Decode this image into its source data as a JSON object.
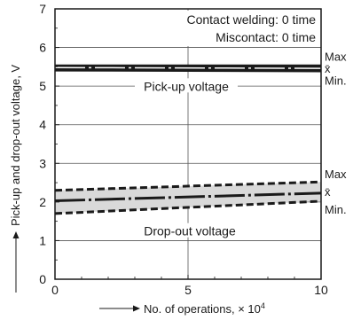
{
  "chart_data": {
    "type": "line",
    "xlabel": "No. of operations, × 10",
    "xlabel_sup": "4",
    "ylabel": "Pick-up and drop-out voltage, V",
    "xlim": [
      0,
      10
    ],
    "ylim": [
      0,
      7
    ],
    "xticks": [
      0,
      5,
      10
    ],
    "yticks": [
      0,
      1,
      2,
      3,
      4,
      5,
      6,
      7
    ],
    "grid": true,
    "annotations": [
      "Contact welding: 0 time",
      "Miscontact: 0 time"
    ],
    "bands": [
      {
        "label": "Pick-up voltage",
        "x": [
          0,
          10
        ],
        "max": [
          5.56,
          5.56
        ],
        "mean": [
          5.48,
          5.46
        ],
        "min": [
          5.38,
          5.36
        ]
      },
      {
        "label": "Drop-out voltage",
        "x": [
          0,
          10
        ],
        "max": [
          2.3,
          2.52
        ],
        "mean": [
          2.03,
          2.23
        ],
        "min": [
          1.7,
          2.02
        ]
      }
    ],
    "stat_labels": [
      "Max",
      "x̄",
      "Min."
    ],
    "colors": {
      "line": "#1a1a1a",
      "band_fill": "#d9d9d9"
    }
  }
}
